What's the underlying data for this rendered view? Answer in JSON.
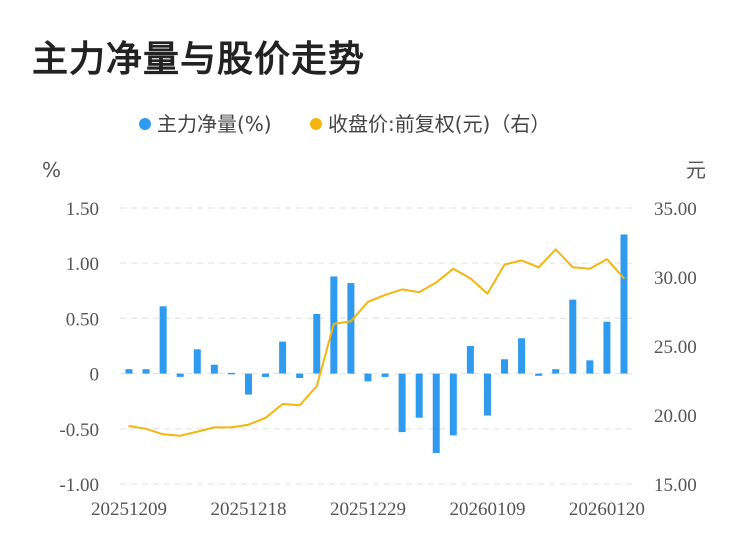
{
  "title": "主力净量与股价走势",
  "chart_data": {
    "type": "bar+line",
    "legend": [
      {
        "name": "主力净量(%)",
        "color": "#2f9bf0"
      },
      {
        "name": "收盘价:前复权(元)（右）",
        "color": "#f5b50f"
      }
    ],
    "left_axis": {
      "unit": "%",
      "ticks": [
        "1.50",
        "1.00",
        "0.50",
        "0",
        "-0.50",
        "-1.00"
      ],
      "range": [
        -1.0,
        1.5
      ]
    },
    "right_axis": {
      "unit": "元",
      "ticks": [
        "35.00",
        "30.00",
        "25.00",
        "20.00",
        "15.00"
      ],
      "range": [
        15.0,
        35.0
      ]
    },
    "x_labels": [
      "20251209",
      "20251218",
      "20251229",
      "20260109",
      "20260120"
    ],
    "grid": true,
    "series": [
      {
        "name": "主力净量(%)",
        "type": "bar",
        "color": "#2f9bf0",
        "values": [
          0.04,
          0.04,
          0.61,
          -0.03,
          0.22,
          0.08,
          0.0,
          -0.19,
          -0.03,
          0.29,
          -0.04,
          0.54,
          0.88,
          0.82,
          -0.07,
          -0.03,
          -0.53,
          -0.4,
          -0.72,
          -0.56,
          0.25,
          -0.38,
          0.13,
          0.32,
          -0.02,
          0.04,
          0.67,
          0.12,
          0.47,
          1.26
        ]
      },
      {
        "name": "收盘价:前复权(元)（右）",
        "type": "line",
        "color": "#f5b50f",
        "values": [
          19.2,
          19.0,
          18.6,
          18.5,
          18.8,
          19.1,
          19.1,
          19.3,
          19.8,
          20.8,
          20.7,
          22.1,
          26.6,
          26.8,
          28.2,
          28.7,
          29.1,
          28.9,
          29.6,
          30.6,
          29.9,
          28.8,
          30.9,
          31.2,
          30.7,
          32.0,
          30.7,
          30.6,
          31.3,
          29.9
        ]
      }
    ]
  }
}
